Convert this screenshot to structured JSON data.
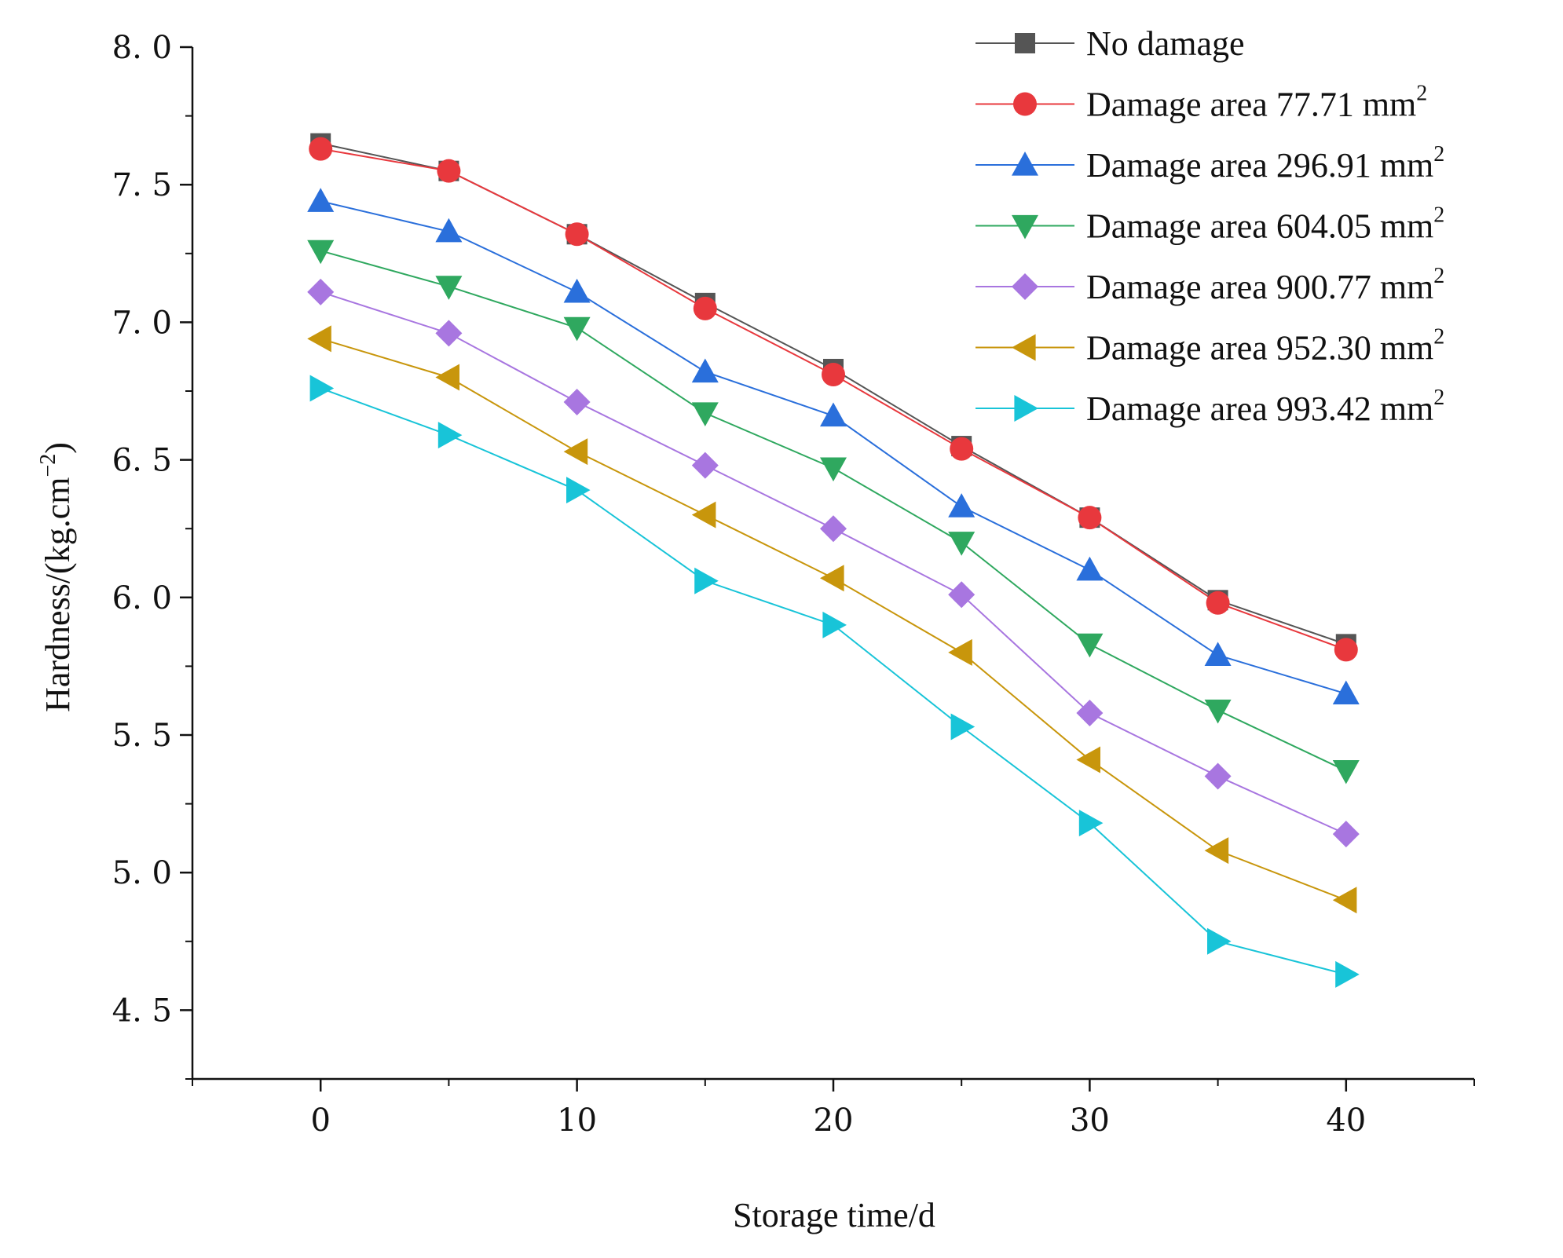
{
  "chart_data": {
    "type": "line",
    "title": "",
    "xlabel": "Storage time/d",
    "ylabel": "Hardness/(kg.cm",
    "ylabel_sup": "−2",
    "ylabel_close": ")",
    "xlim": [
      -5,
      45
    ],
    "ylim": [
      4.25,
      8.0
    ],
    "x_ticks": [
      0,
      10,
      20,
      30,
      40
    ],
    "x_minor_ticks": [
      5,
      15,
      25,
      35,
      -5,
      45
    ],
    "y_ticks": [
      4.5,
      5.0,
      5.5,
      6.0,
      6.5,
      7.0,
      7.5,
      8.0
    ],
    "y_tick_labels": [
      "4. 5",
      "5. 0",
      "5. 5",
      "6. 0",
      "6. 5",
      "7. 0",
      "7. 5",
      "8. 0"
    ],
    "x": [
      0,
      5,
      10,
      15,
      20,
      25,
      30,
      35,
      40
    ],
    "grid": false,
    "legend_position": "top-right",
    "series": [
      {
        "name": "No damage",
        "unit_sup": "",
        "color": "#555555",
        "marker": "square",
        "values": [
          7.65,
          7.55,
          7.32,
          7.07,
          6.83,
          6.55,
          6.29,
          5.99,
          5.83
        ]
      },
      {
        "name": "Damage area 77.71  mm",
        "unit_sup": "2",
        "color": "#e8383d",
        "marker": "circle",
        "values": [
          7.63,
          7.55,
          7.32,
          7.05,
          6.81,
          6.54,
          6.29,
          5.98,
          5.81
        ]
      },
      {
        "name": "Damage area 296.91 mm",
        "unit_sup": "2",
        "color": "#2a6fdb",
        "marker": "triangle-up",
        "values": [
          7.44,
          7.33,
          7.11,
          6.82,
          6.66,
          6.33,
          6.1,
          5.79,
          5.65
        ]
      },
      {
        "name": "Damage area 604.05 mm",
        "unit_sup": "2",
        "color": "#2fa85f",
        "marker": "triangle-down",
        "values": [
          7.26,
          7.13,
          6.98,
          6.67,
          6.47,
          6.2,
          5.83,
          5.59,
          5.37
        ]
      },
      {
        "name": "Damage area 900.77 mm",
        "unit_sup": "2",
        "color": "#a876e0",
        "marker": "diamond",
        "values": [
          7.11,
          6.96,
          6.71,
          6.48,
          6.25,
          6.01,
          5.58,
          5.35,
          5.14
        ]
      },
      {
        "name": "Damage area 952.30 mm",
        "unit_sup": "2",
        "color": "#c8960c",
        "marker": "triangle-left",
        "values": [
          6.94,
          6.8,
          6.53,
          6.3,
          6.07,
          5.8,
          5.41,
          5.08,
          4.9
        ]
      },
      {
        "name": "Damage area 993.42 mm",
        "unit_sup": "2",
        "color": "#18c4d8",
        "marker": "triangle-right",
        "values": [
          6.76,
          6.59,
          6.39,
          6.06,
          5.9,
          5.53,
          5.18,
          4.75,
          4.63
        ]
      }
    ]
  }
}
